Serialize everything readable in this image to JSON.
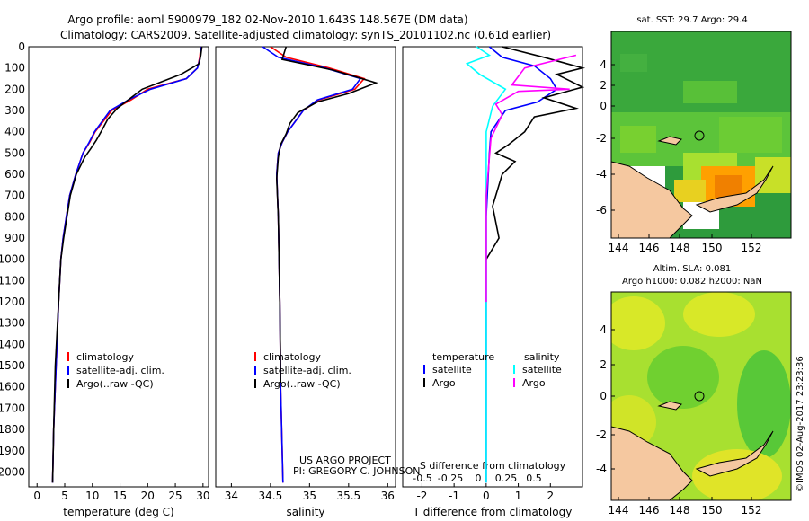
{
  "header": {
    "line1": "Argo profile: aoml 5900979_182 02-Nov-2010 1.643S 148.567E (DM data)",
    "line2": "Climatology: CARS2009. Satellite-adjusted climatology: synTS_20101102.nc (0.61d earlier)"
  },
  "depth_axis": {
    "ticks": [
      0,
      100,
      200,
      300,
      400,
      500,
      600,
      700,
      800,
      900,
      1000,
      1100,
      1200,
      1300,
      1400,
      1500,
      1600,
      1700,
      1800,
      1900,
      2000
    ],
    "ylim": [
      2070,
      0
    ]
  },
  "chart_data": [
    {
      "type": "line",
      "panel": "temperature",
      "xlabel": "temperature (deg C)",
      "xlim": [
        -1.5,
        31
      ],
      "xticks": [
        0,
        5,
        10,
        15,
        20,
        25,
        30
      ],
      "legend": [
        "climatology",
        "satellite-adj. clim.",
        "Argo(..raw -QC)"
      ],
      "series": [
        {
          "name": "climatology",
          "color": "#ff0000",
          "x": [
            29.6,
            29.4,
            29.0,
            27.0,
            20.0,
            17.0,
            13.5,
            12.0,
            10.5,
            9.5,
            8.3,
            7.0,
            5.9,
            5.3,
            4.7,
            4.3,
            3.9,
            3.6,
            3.3,
            3.0,
            2.8
          ],
          "y": [
            0,
            50,
            100,
            150,
            200,
            250,
            300,
            350,
            400,
            450,
            500,
            600,
            700,
            800,
            900,
            1000,
            1200,
            1400,
            1600,
            1800,
            2050
          ]
        },
        {
          "name": "satellite-adj. clim.",
          "color": "#0000ff",
          "x": [
            29.7,
            29.5,
            29.0,
            27.0,
            20.5,
            16.5,
            13.2,
            11.8,
            10.4,
            9.4,
            8.3,
            7.0,
            5.9,
            5.3,
            4.7,
            4.3,
            3.9,
            3.6,
            3.3,
            3.0,
            2.8
          ],
          "y": [
            0,
            50,
            100,
            150,
            200,
            250,
            300,
            350,
            400,
            450,
            500,
            600,
            700,
            800,
            900,
            1000,
            1200,
            1400,
            1600,
            1800,
            2050
          ]
        },
        {
          "name": "Argo(..raw -QC)",
          "color": "#000000",
          "x": [
            29.8,
            29.6,
            29.3,
            28.0,
            26.0,
            22.0,
            19.0,
            17.0,
            14.5,
            12.8,
            11.8,
            10.7,
            9.7,
            8.6,
            7.1,
            6.0,
            5.4,
            4.8,
            4.3,
            3.9,
            3.3,
            3.0,
            2.8
          ],
          "y": [
            0,
            40,
            80,
            100,
            130,
            170,
            200,
            240,
            290,
            340,
            390,
            440,
            480,
            520,
            600,
            700,
            800,
            900,
            1000,
            1200,
            1500,
            1800,
            2050
          ]
        }
      ]
    },
    {
      "type": "line",
      "panel": "salinity",
      "xlabel": "salinity",
      "xlim": [
        33.8,
        36.1
      ],
      "xticks": [
        34,
        34.5,
        35,
        35.5,
        36
      ],
      "xtick_labels": [
        "34",
        "34.5",
        "35",
        "35.5",
        "36"
      ],
      "legend": [
        "climatology",
        "satellite-adj. clim.",
        "Argo(..raw -QC)"
      ],
      "series": [
        {
          "name": "climatology",
          "color": "#ff0000",
          "x": [
            34.5,
            34.7,
            35.25,
            35.7,
            35.58,
            35.12,
            34.92,
            34.82,
            34.72,
            34.65,
            34.6,
            34.58,
            34.6,
            34.62,
            34.63,
            34.66
          ],
          "y": [
            0,
            50,
            100,
            150,
            200,
            250,
            300,
            350,
            400,
            450,
            500,
            600,
            800,
            1200,
            1600,
            2050
          ]
        },
        {
          "name": "satellite-adj. clim.",
          "color": "#0000ff",
          "x": [
            34.4,
            34.6,
            35.2,
            35.65,
            35.55,
            35.1,
            34.92,
            34.82,
            34.72,
            34.65,
            34.6,
            34.58,
            34.6,
            34.62,
            34.63,
            34.66
          ],
          "y": [
            0,
            50,
            100,
            150,
            200,
            250,
            300,
            350,
            400,
            450,
            500,
            600,
            800,
            1200,
            1600,
            2050
          ]
        },
        {
          "name": "Argo(..raw -QC)",
          "color": "#000000",
          "x": [
            34.7,
            34.65,
            35.3,
            35.85,
            35.5,
            35.1,
            34.85,
            34.75,
            34.7,
            34.63,
            34.6,
            34.58,
            34.6,
            34.62,
            34.63
          ],
          "y": [
            0,
            60,
            110,
            170,
            220,
            260,
            310,
            360,
            410,
            460,
            520,
            620,
            800,
            1200,
            1580
          ]
        }
      ]
    },
    {
      "type": "line",
      "panel": "difference",
      "xlabel": "T difference from climatology",
      "xlabel_top": "S difference from climatology",
      "xlim": [
        -2.6,
        3.0
      ],
      "xticks": [
        -2,
        -1,
        0,
        1,
        2
      ],
      "xtick_labels": [
        "-2",
        "-1",
        "0",
        "1",
        "2"
      ],
      "s_tick_labels": [
        "-0.5",
        "-0.25",
        "0",
        "0.25",
        "0.5"
      ],
      "legend_titles": [
        "temperature",
        "salinity"
      ],
      "legend": [
        "satellite",
        "Argo",
        "satellite",
        "Argo"
      ],
      "series": [
        {
          "name": "satellite",
          "group": "temperature",
          "color": "#0000ff",
          "x": [
            0.1,
            0.5,
            1.5,
            2.0,
            2.2,
            1.6,
            0.6,
            0.15,
            0.1,
            0.0,
            0.0,
            0.0
          ],
          "y": [
            0,
            50,
            90,
            150,
            200,
            260,
            300,
            400,
            500,
            800,
            1500,
            2050
          ]
        },
        {
          "name": "Argo",
          "group": "temperature",
          "color": "#000000",
          "x": [
            0.5,
            1.8,
            3.0,
            2.2,
            3.0,
            1.8,
            2.8,
            1.5,
            1.2,
            0.7,
            0.3,
            0.9,
            0.5,
            0.2,
            0.4,
            0.0
          ],
          "y": [
            0,
            50,
            100,
            130,
            190,
            240,
            290,
            330,
            400,
            460,
            500,
            540,
            600,
            750,
            900,
            1000
          ]
        },
        {
          "name": "satellite",
          "group": "salinity",
          "color": "#00ffff",
          "x": [
            -0.3,
            0.1,
            -0.6,
            -0.2,
            0.6,
            0.2,
            0.0,
            0.0,
            0.0
          ],
          "y": [
            0,
            40,
            80,
            130,
            200,
            280,
            400,
            800,
            2050
          ]
        },
        {
          "name": "Argo",
          "group": "salinity",
          "color": "#ff00ff",
          "x": [
            2.8,
            1.2,
            0.8,
            2.6,
            1.0,
            0.3,
            0.5,
            0.15,
            0.0,
            0.0
          ],
          "y": [
            40,
            100,
            180,
            200,
            210,
            270,
            320,
            430,
            700,
            1200
          ]
        }
      ]
    }
  ],
  "maps": {
    "top_title": "sat. SST: 29.7  Argo: 29.4",
    "bottom_title_line1": "Altim. SLA: 0.081",
    "bottom_title_line2": "Argo h1000: 0.082  h2000: NaN",
    "lon_ticks": [
      "144",
      "146",
      "148",
      "150",
      "152"
    ],
    "lat_ticks": [
      "4",
      "2",
      "0",
      "-2",
      "-4",
      "-6"
    ],
    "float_position": {
      "lon": 148.567,
      "lat": -1.643
    }
  },
  "credits": {
    "line1": "US ARGO PROJECT",
    "line2": "PI: GREGORY C. JOHNSON",
    "side": "©IMOS 02-Aug-2017 23:23:36"
  },
  "colors": {
    "land": "#f5c8a0",
    "sst_warm": "#ffa000",
    "sst_mid": "#60c830",
    "sla": "#a8e030"
  }
}
